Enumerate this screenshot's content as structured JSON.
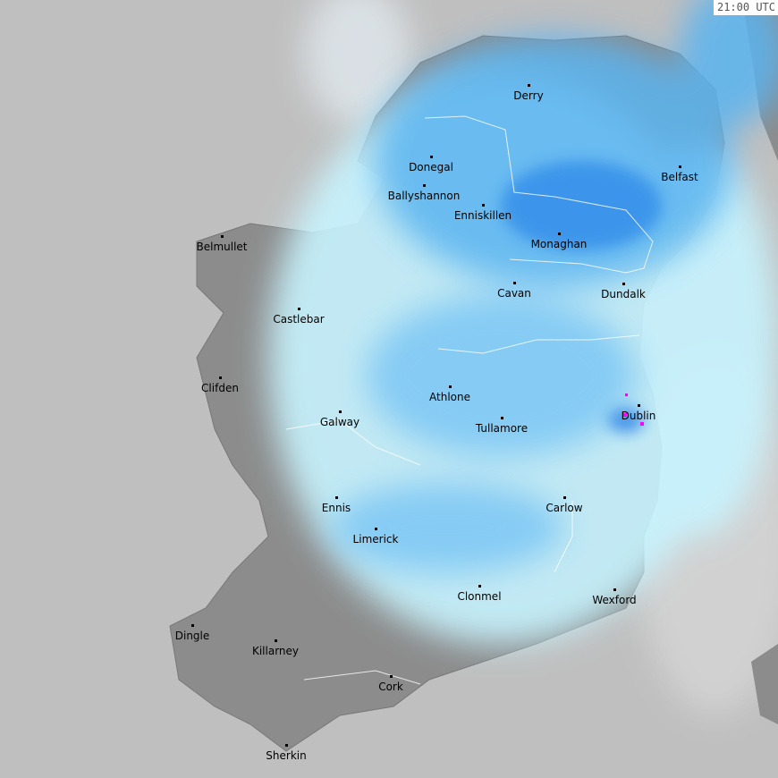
{
  "timestamp": "21:00 UTC",
  "colors": {
    "sea": "#bfbfbf",
    "land": "#8c8c8c",
    "rain_light": "#c8f4ff",
    "rain_medium": "#5ab4f0",
    "rain_heavy": "#1e78e6",
    "rain_intense": "#ff00ff"
  },
  "towns": [
    {
      "name": "Derry"
    },
    {
      "name": "Donegal"
    },
    {
      "name": "Ballyshannon"
    },
    {
      "name": "Enniskillen"
    },
    {
      "name": "Belfast"
    },
    {
      "name": "Belmullet"
    },
    {
      "name": "Monaghan"
    },
    {
      "name": "Cavan"
    },
    {
      "name": "Dundalk"
    },
    {
      "name": "Castlebar"
    },
    {
      "name": "Clifden"
    },
    {
      "name": "Athlone"
    },
    {
      "name": "Dublin"
    },
    {
      "name": "Galway"
    },
    {
      "name": "Tullamore"
    },
    {
      "name": "Ennis"
    },
    {
      "name": "Carlow"
    },
    {
      "name": "Limerick"
    },
    {
      "name": "Clonmel"
    },
    {
      "name": "Wexford"
    },
    {
      "name": "Dingle"
    },
    {
      "name": "Killarney"
    },
    {
      "name": "Cork"
    },
    {
      "name": "Sherkin"
    }
  ]
}
